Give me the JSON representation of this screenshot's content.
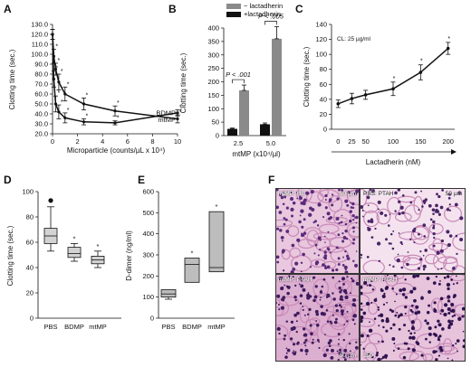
{
  "chart_data": [
    {
      "panel": "A",
      "type": "line",
      "xlabel": "Microparticle  (counts/µL x 10⁴)",
      "ylabel": "Clotting time (sec.)",
      "xlim": [
        0,
        10
      ],
      "ylim": [
        20,
        130
      ],
      "xticks": [
        0,
        2,
        4,
        6,
        8,
        10
      ],
      "yticks": [
        20,
        30,
        40,
        50,
        60,
        70,
        80,
        90,
        100,
        110,
        120,
        130
      ],
      "ytick_labels": [
        "20.0",
        "30.0",
        "40.0",
        "50.0",
        "60.0",
        "70.0",
        "80.0",
        "90.0",
        "100.0",
        "110.0",
        "120.0",
        "130.0"
      ],
      "series": [
        {
          "name": "BDMP",
          "x": [
            0,
            0.1,
            0.25,
            0.5,
            1,
            2.5,
            5,
            10
          ],
          "y": [
            120,
            98,
            85,
            72,
            60,
            50,
            43,
            35
          ],
          "err": [
            5,
            7,
            6,
            8,
            7,
            6,
            5,
            4
          ]
        },
        {
          "name": "mtMP",
          "x": [
            0,
            0.1,
            0.25,
            0.5,
            1,
            2.5,
            5,
            10
          ],
          "y": [
            120,
            75,
            50,
            42,
            36,
            32,
            31,
            41
          ],
          "err": [
            5,
            8,
            8,
            7,
            5,
            3,
            2,
            3
          ]
        }
      ],
      "annotations": [
        "*",
        "*",
        "*",
        "*",
        "*",
        "*",
        "*",
        "*",
        "*",
        "*",
        "*",
        "*"
      ]
    },
    {
      "panel": "B",
      "type": "bar",
      "xlabel": "mtMP (x10⁴/µl)",
      "ylabel": "Clotting time (sec.)",
      "ylim": [
        0,
        400
      ],
      "yticks": [
        0,
        50,
        100,
        150,
        200,
        250,
        300,
        350,
        400
      ],
      "categories": [
        "2.5",
        "5.0"
      ],
      "series": [
        {
          "name": "+lactadherin",
          "values": [
            25,
            42
          ],
          "err": [
            3,
            5
          ],
          "color": "#111111"
        },
        {
          "name": "− lactadherin",
          "values": [
            168,
            360
          ],
          "err": [
            20,
            45
          ],
          "color": "#8a8a8a"
        }
      ],
      "pvalues": [
        "P < .001",
        "P < .005"
      ],
      "legend": "top"
    },
    {
      "panel": "C",
      "type": "line",
      "xlabel": "Lactadherin (nM)",
      "ylabel": "Clotting time (sec.)",
      "annotation": "CL: 25 µg/ml",
      "xlim": [
        0,
        200
      ],
      "ylim": [
        0,
        140
      ],
      "xticks": [
        0,
        25,
        50,
        100,
        150,
        200
      ],
      "yticks": [
        0,
        20,
        40,
        60,
        80,
        100,
        120,
        140
      ],
      "x": [
        0,
        25,
        50,
        100,
        150,
        200
      ],
      "y": [
        34,
        41,
        46,
        54,
        76,
        108
      ],
      "err": [
        5,
        7,
        6,
        9,
        10,
        8
      ],
      "stars": [
        "*",
        "*",
        "*"
      ]
    },
    {
      "panel": "D",
      "type": "box",
      "ylabel": "Clotting time (sec.)",
      "ylim": [
        0,
        100
      ],
      "yticks": [
        0,
        20,
        40,
        60,
        80,
        100
      ],
      "categories": [
        "PBS",
        "BDMP",
        "mtMP"
      ],
      "boxes": [
        {
          "min": 53,
          "q1": 59,
          "median": 65,
          "q3": 71,
          "max": 88,
          "outlier": 93
        },
        {
          "min": 45,
          "q1": 48,
          "median": 51,
          "q3": 56,
          "max": 59
        },
        {
          "min": 40,
          "q1": 43,
          "median": 46,
          "q3": 49,
          "max": 53
        }
      ],
      "stars": [
        "*",
        "*"
      ]
    },
    {
      "panel": "E",
      "type": "box",
      "ylabel": "D-dimer (ng/ml)",
      "ylim": [
        0,
        600
      ],
      "yticks": [
        0,
        100,
        200,
        300,
        400,
        500,
        600
      ],
      "categories": [
        "PBS",
        "BDMP",
        "mtMP"
      ],
      "boxes": [
        {
          "min": 90,
          "q1": 100,
          "median": 115,
          "q3": 135
        },
        {
          "min": 170,
          "q1": 170,
          "median": 255,
          "q3": 285
        },
        {
          "min": 220,
          "q1": 220,
          "median": 240,
          "q3": 505
        }
      ],
      "stars": [
        "*",
        "*"
      ]
    }
  ],
  "panel_letters": [
    "A",
    "B",
    "C",
    "D",
    "E",
    "F"
  ],
  "histology": {
    "tl_label": "mtMP: HE",
    "tl_scale": "50 µm",
    "tr_label": "PBS: PTAH",
    "tr_scale": "50 µm",
    "bl_label": "mtMP: PTAH",
    "bl_scale": "50 µm",
    "br_label": "mtMP: PTAH",
    "br_scale": "150"
  }
}
